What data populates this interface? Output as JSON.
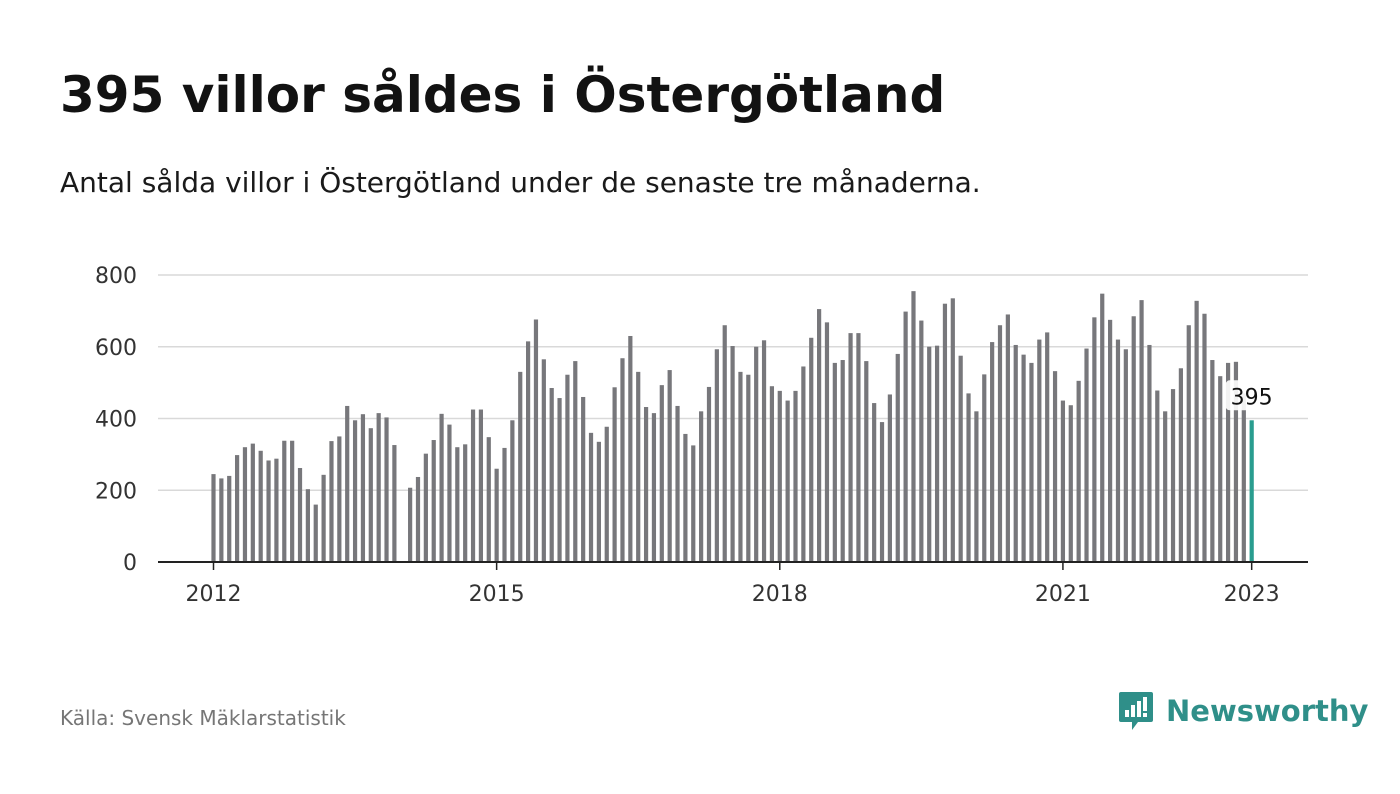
{
  "title": "395 villor såldes i Östergötland",
  "subtitle": "Antal sålda villor i Östergötland under de senaste tre månaderna.",
  "source": "Källa: Svensk Mäklarstatistik",
  "brand": {
    "name": "Newsworthy",
    "icon": "newsworthy-logo-icon",
    "color": "#2f8f89"
  },
  "chart_data": {
    "type": "bar",
    "title": "395 villor såldes i Östergötland",
    "subtitle": "Antal sålda villor i Östergötland under de senaste tre månaderna.",
    "x_start": "2012-01",
    "interval": "month",
    "values": [
      245,
      233,
      240,
      298,
      320,
      330,
      310,
      283,
      288,
      338,
      338,
      262,
      203,
      160,
      243,
      337,
      350,
      435,
      395,
      412,
      373,
      415,
      403,
      326,
      null,
      207,
      237,
      302,
      340,
      413,
      383,
      320,
      328,
      425,
      425,
      348,
      260,
      318,
      395,
      530,
      615,
      676,
      565,
      485,
      457,
      522,
      560,
      460,
      360,
      335,
      377,
      487,
      568,
      630,
      530,
      432,
      415,
      493,
      535,
      435,
      357,
      325,
      420,
      488,
      593,
      660,
      602,
      530,
      522,
      600,
      618,
      490,
      477,
      450,
      477,
      545,
      625,
      705,
      668,
      555,
      563,
      638,
      638,
      560,
      443,
      390,
      467,
      580,
      698,
      755,
      673,
      600,
      603,
      720,
      735,
      575,
      470,
      420,
      523,
      613,
      660,
      690,
      605,
      578,
      555,
      620,
      640,
      532,
      450,
      437,
      505,
      595,
      682,
      748,
      675,
      620,
      593,
      685,
      730,
      605,
      478,
      420,
      482,
      540,
      660,
      728,
      692,
      563,
      518,
      555,
      558,
      470,
      395
    ],
    "highlight_last": true,
    "highlight_label": "395",
    "colors": {
      "bar": "#77777b",
      "highlight": "#2a9d8f",
      "grid": "#d9d9d9",
      "axis": "#222222"
    },
    "yticks": [
      0,
      200,
      400,
      600,
      800
    ],
    "ylim": [
      0,
      800
    ],
    "xticks": [
      "2012",
      "2015",
      "2018",
      "2021",
      "2023"
    ],
    "grid": true,
    "legend": "none"
  }
}
